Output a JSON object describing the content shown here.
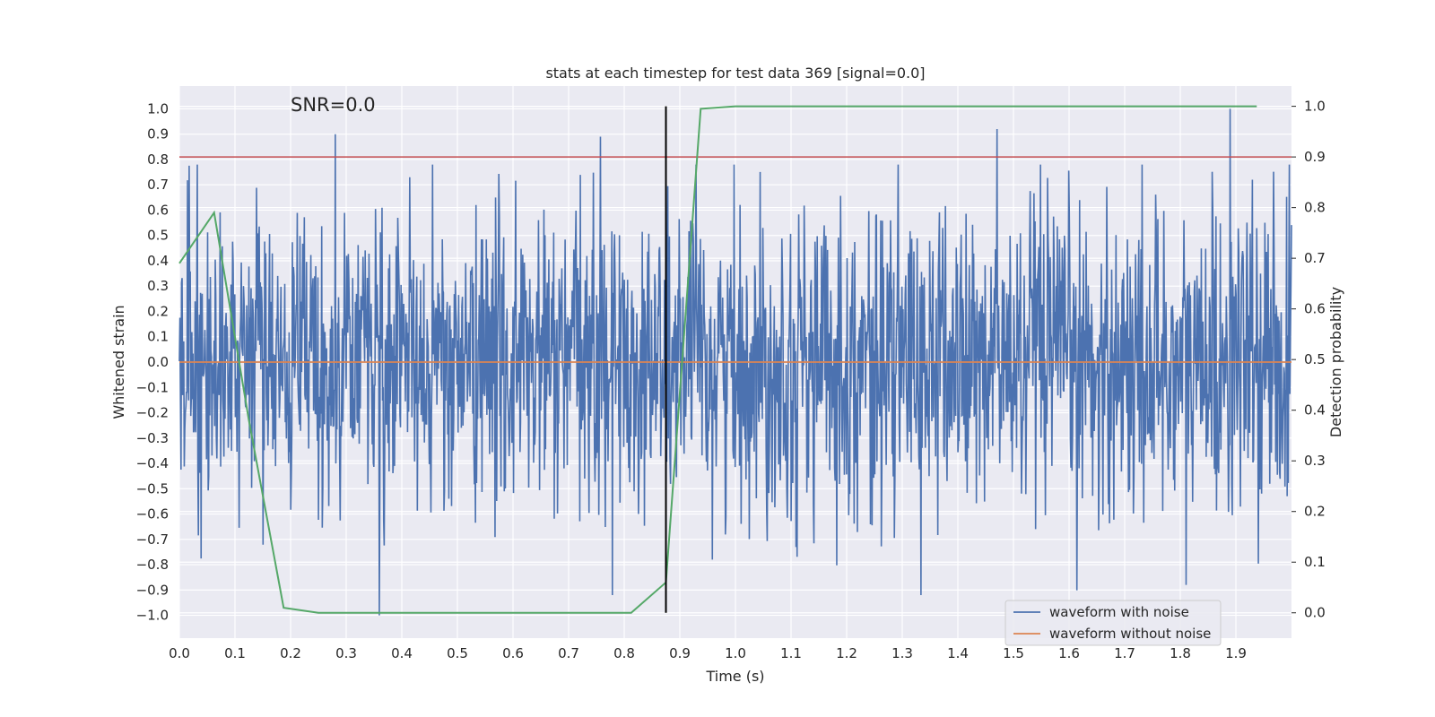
{
  "chart_data": {
    "type": "line",
    "title": "stats at each timestep for test data 369 [signal=0.0]",
    "xlabel": "Time (s)",
    "ylabel": "Whitened strain",
    "y2label": "Detection probability",
    "xlim": [
      0.0,
      2.0
    ],
    "ylim": [
      -1.09,
      1.09
    ],
    "y2lim": [
      -0.05,
      1.04
    ],
    "x_ticks": [
      "0.0",
      "0.1",
      "0.2",
      "0.3",
      "0.4",
      "0.5",
      "0.6",
      "0.7",
      "0.8",
      "0.9",
      "1.0",
      "1.1",
      "1.2",
      "1.3",
      "1.4",
      "1.5",
      "1.6",
      "1.7",
      "1.8",
      "1.9"
    ],
    "y_ticks": [
      "1.0",
      "0.9",
      "0.8",
      "0.7",
      "0.6",
      "0.5",
      "0.4",
      "0.3",
      "0.2",
      "0.1",
      "0.0",
      "−0.1",
      "−0.2",
      "−0.3",
      "−0.4",
      "−0.5",
      "−0.6",
      "−0.7",
      "−0.8",
      "−0.9",
      "−1.0"
    ],
    "y2_ticks": [
      "1.0",
      "0.9",
      "0.8",
      "0.7",
      "0.6",
      "0.5",
      "0.4",
      "0.3",
      "0.2",
      "0.1",
      "0.0"
    ],
    "grid": true,
    "legend_position": "lower-right",
    "annotation": "SNR=0.0",
    "series": [
      {
        "name": "waveform with noise",
        "color": "#4c72b0",
        "axis": "left",
        "kind": "noise",
        "x_range": [
          0.0,
          2.0
        ],
        "n_points": 2048,
        "approx_std": 0.3,
        "notable_peaks": [
          {
            "x": 0.28,
            "y": 0.9
          },
          {
            "x": 0.36,
            "y": -1.0
          },
          {
            "x": 0.757,
            "y": 0.89
          },
          {
            "x": 1.47,
            "y": 0.92
          },
          {
            "x": 1.89,
            "y": 1.0
          },
          {
            "x": 1.81,
            "y": -0.88
          }
        ]
      },
      {
        "name": "waveform without noise",
        "color": "#dd8452",
        "axis": "left",
        "x": [
          0.0,
          2.0
        ],
        "y": [
          0.0,
          0.0
        ]
      },
      {
        "name": "",
        "color": "#55a868",
        "axis": "right",
        "x": [
          0.0,
          0.0625,
          0.125,
          0.1875,
          0.25,
          0.3125,
          0.375,
          0.4375,
          0.5,
          0.5625,
          0.625,
          0.6875,
          0.75,
          0.8125,
          0.875,
          0.9375,
          1.0,
          1.0625,
          1.125,
          1.1875,
          1.25,
          1.3125,
          1.375,
          1.4375,
          1.5,
          1.5625,
          1.625,
          1.6875,
          1.75,
          1.8125,
          1.875,
          1.9375
        ],
        "y": [
          0.69,
          0.79,
          0.38,
          0.01,
          0.0,
          0.0,
          0.0,
          0.0,
          0.0,
          0.0,
          0.0,
          0.0,
          0.0,
          0.0,
          0.06,
          0.995,
          1.0,
          1.0,
          1.0,
          1.0,
          1.0,
          1.0,
          1.0,
          1.0,
          1.0,
          1.0,
          1.0,
          1.0,
          1.0,
          1.0,
          1.0,
          1.0
        ]
      }
    ],
    "hlines": [
      {
        "y": 0.9,
        "axis": "right",
        "color": "#c44e52"
      }
    ],
    "vlines": [
      {
        "x": 0.875,
        "y2_from": 0.0,
        "y2_to": 1.0,
        "color": "#000000"
      }
    ]
  }
}
